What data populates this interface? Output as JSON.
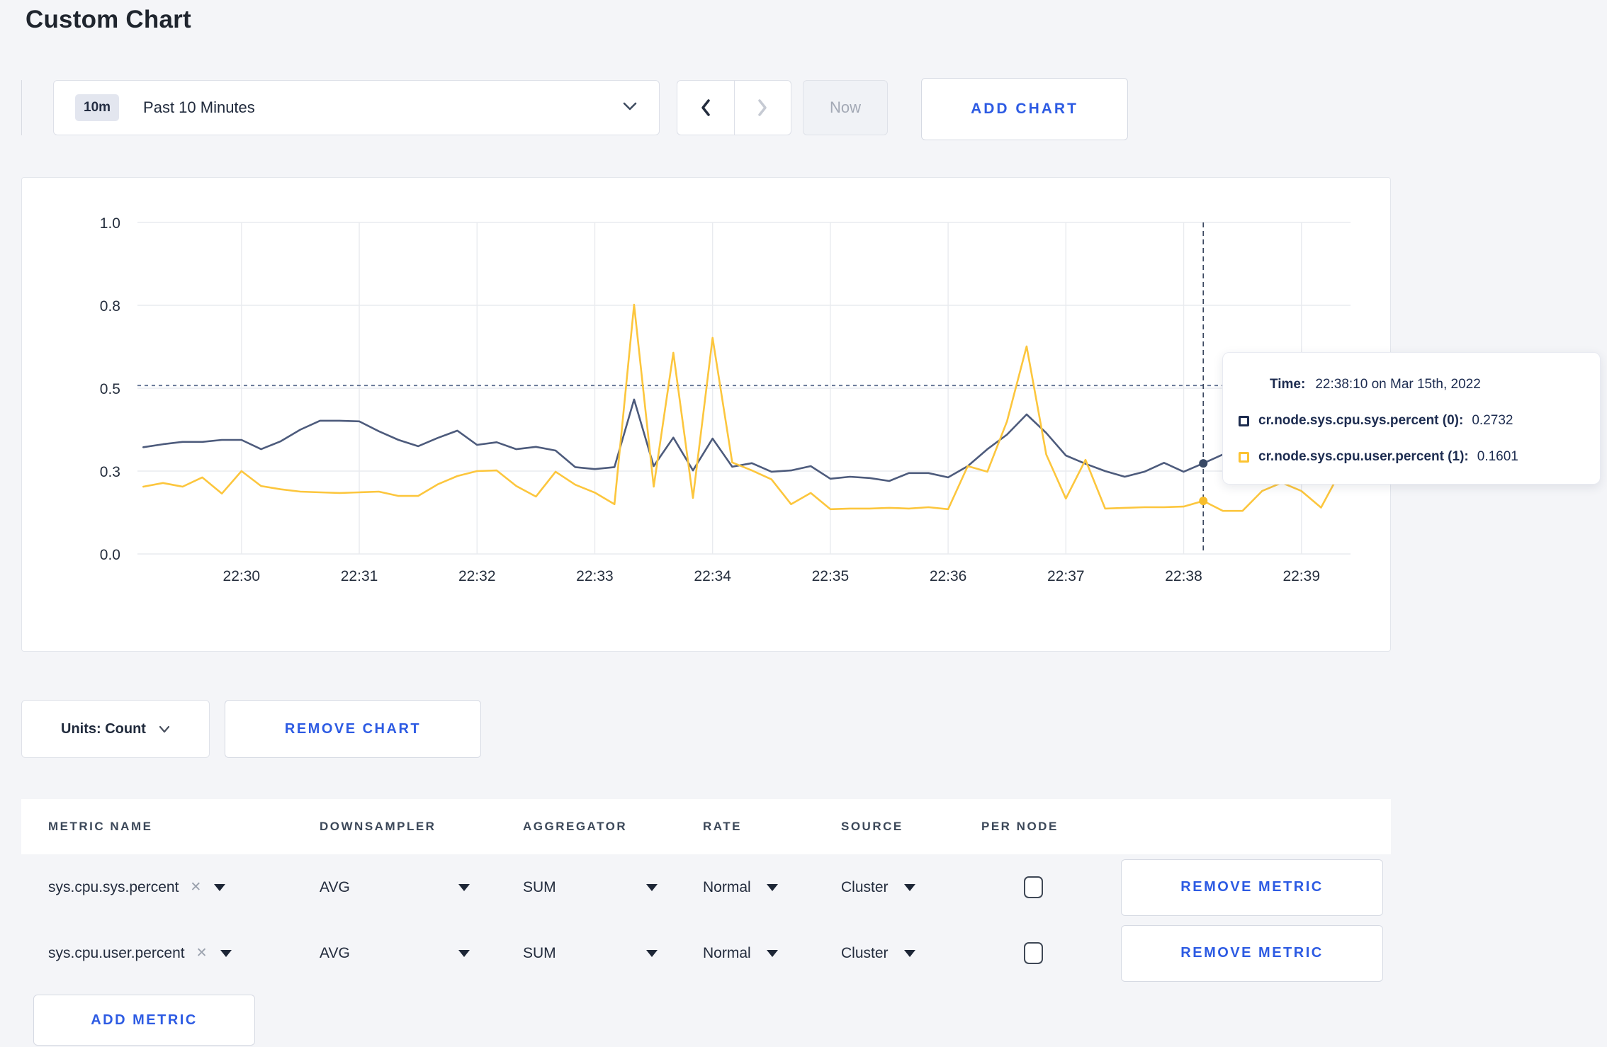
{
  "page": {
    "title": "Custom Chart"
  },
  "toolbar": {
    "range_badge": "10m",
    "range_label": "Past 10 Minutes",
    "now_label": "Now",
    "add_chart_label": "ADD CHART"
  },
  "chart_data": {
    "type": "line",
    "title": "",
    "xlabel": "",
    "ylabel": "",
    "ylim": [
      0,
      1
    ],
    "grid": true,
    "legend_position": "tooltip",
    "y_ticks": [
      {
        "value": 0,
        "label": "0.0"
      },
      {
        "value": 0.25,
        "label": "0.3"
      },
      {
        "value": 0.5,
        "label": "0.5"
      },
      {
        "value": 0.75,
        "label": "0.8"
      },
      {
        "value": 1,
        "label": "1.0"
      }
    ],
    "x_ticks": [
      "22:30",
      "22:31",
      "22:32",
      "22:33",
      "22:34",
      "22:35",
      "22:36",
      "22:37",
      "22:38",
      "22:39"
    ],
    "sample_interval_seconds": 10,
    "first_sample_time": "22:29:10",
    "threshold_value": 0.508,
    "hover_index": 54,
    "hover_time": "22:38:10",
    "colors": {
      "grid": "#e9ebef",
      "threshold": "#5b6c8e",
      "crosshair": "#3a475f"
    },
    "series": [
      {
        "name": "cr.node.sys.cpu.sys.percent (0)",
        "color": "#4d5b7c",
        "dot_color": "#394965",
        "values": [
          0.322,
          0.331,
          0.338,
          0.338,
          0.344,
          0.344,
          0.316,
          0.34,
          0.375,
          0.402,
          0.402,
          0.4,
          0.37,
          0.344,
          0.325,
          0.35,
          0.372,
          0.329,
          0.337,
          0.316,
          0.323,
          0.312,
          0.262,
          0.256,
          0.262,
          0.466,
          0.265,
          0.351,
          0.252,
          0.348,
          0.263,
          0.274,
          0.248,
          0.252,
          0.265,
          0.227,
          0.233,
          0.229,
          0.22,
          0.244,
          0.244,
          0.231,
          0.265,
          0.316,
          0.36,
          0.421,
          0.365,
          0.297,
          0.272,
          0.25,
          0.233,
          0.248,
          0.275,
          0.248,
          0.2732,
          0.3,
          0.305,
          0.3,
          0.298,
          0.305,
          0.3,
          0.295
        ]
      },
      {
        "name": "cr.node.sys.cpu.user.percent (1)",
        "color": "#fcc63d",
        "dot_color": "#f7bd2b",
        "values": [
          0.203,
          0.214,
          0.203,
          0.231,
          0.182,
          0.25,
          0.205,
          0.195,
          0.188,
          0.186,
          0.184,
          0.186,
          0.188,
          0.175,
          0.175,
          0.21,
          0.235,
          0.25,
          0.252,
          0.205,
          0.173,
          0.248,
          0.209,
          0.185,
          0.15,
          0.752,
          0.203,
          0.607,
          0.169,
          0.652,
          0.276,
          0.252,
          0.225,
          0.15,
          0.184,
          0.135,
          0.137,
          0.137,
          0.139,
          0.137,
          0.141,
          0.135,
          0.265,
          0.248,
          0.4,
          0.626,
          0.3,
          0.167,
          0.284,
          0.137,
          0.139,
          0.141,
          0.141,
          0.143,
          0.1601,
          0.13,
          0.13,
          0.19,
          0.215,
          0.19,
          0.14,
          0.25
        ]
      }
    ]
  },
  "tooltip": {
    "time_label": "Time:",
    "time_value": "22:38:10 on Mar 15th, 2022",
    "entries": [
      {
        "label": "cr.node.sys.cpu.sys.percent (0):",
        "value": "0.2732",
        "swatch_color": "#1d2c4f"
      },
      {
        "label": "cr.node.sys.cpu.user.percent (1):",
        "value": "0.1601",
        "swatch_color": "#fcc331"
      }
    ]
  },
  "units_bar": {
    "units_label": "Units: Count",
    "remove_chart_label": "REMOVE CHART"
  },
  "metrics_table": {
    "headers": [
      "METRIC NAME",
      "DOWNSAMPLER",
      "AGGREGATOR",
      "RATE",
      "SOURCE",
      "PER NODE"
    ],
    "rows": [
      {
        "metric": "sys.cpu.sys.percent",
        "remove_icon": "✕",
        "downsampler": "AVG",
        "aggregator": "SUM",
        "rate": "Normal",
        "source": "Cluster",
        "per_node_checked": false,
        "remove_label": "REMOVE METRIC"
      },
      {
        "metric": "sys.cpu.user.percent",
        "remove_icon": "✕",
        "downsampler": "AVG",
        "aggregator": "SUM",
        "rate": "Normal",
        "source": "Cluster",
        "per_node_checked": false,
        "remove_label": "REMOVE METRIC"
      }
    ],
    "add_metric_label": "ADD METRIC"
  }
}
